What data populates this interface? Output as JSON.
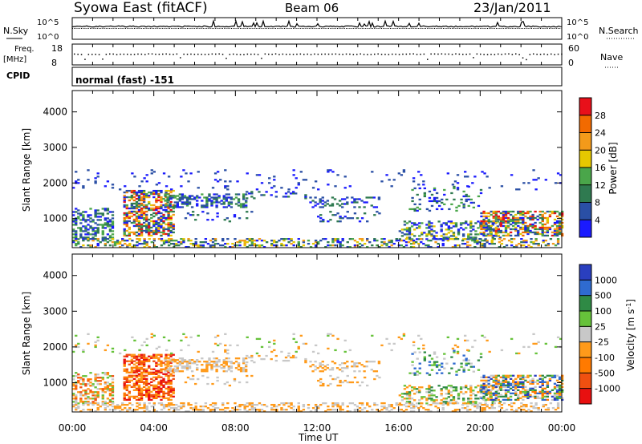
{
  "header": {
    "station": "Syowa East (fitACF)",
    "beam": "Beam 06",
    "date": "23/Jan/2011"
  },
  "strip": {
    "nsky_label": "N.Sky",
    "nsearch_label": "N.Search",
    "nsky_ticks": [
      "10^5",
      "10^0"
    ],
    "nsearch_ticks": [
      "10^5",
      "10^0"
    ],
    "freq_label_1": "Freq.",
    "freq_label_2": "[MHz]",
    "freq_ticks": [
      "18",
      "8"
    ],
    "nave_label": "Nave",
    "nave_ticks": [
      "60",
      "0"
    ],
    "cpid_label": "CPID",
    "cpid_value": "normal (fast) -151"
  },
  "chart_data": [
    {
      "type": "heatmap",
      "name": "power",
      "ylabel": "Slant Range [km]",
      "yticks": [
        "1000",
        "2000",
        "3000",
        "4000"
      ],
      "ylim": [
        180,
        4600
      ],
      "xlim": [
        0,
        24
      ],
      "colorbar": {
        "label": "Power [dB]",
        "ticks": [
          "4",
          "8",
          "12",
          "16",
          "20",
          "24",
          "28"
        ],
        "colors": [
          "#1a1aff",
          "#2a4fa5",
          "#2f7a50",
          "#4aa64a",
          "#e6c800",
          "#f39a1a",
          "#f26a00",
          "#e8101a"
        ]
      }
    },
    {
      "type": "heatmap",
      "name": "velocity",
      "ylabel": "Slant Range [km]",
      "yticks": [
        "1000",
        "2000",
        "3000",
        "4000"
      ],
      "ylim": [
        180,
        4600
      ],
      "xlim": [
        0,
        24
      ],
      "xlabel": "Time UT",
      "xticks": [
        "00:00",
        "04:00",
        "08:00",
        "12:00",
        "16:00",
        "20:00",
        "00:00"
      ],
      "colorbar": {
        "label": "Velocity [m s^-1]",
        "ticks": [
          "1000",
          "500",
          "100",
          "25",
          "-25",
          "-100",
          "-500",
          "-1000"
        ],
        "colors": [
          "#2a3fbf",
          "#2f6bd0",
          "#2f8a45",
          "#66c23a",
          "#c8c8c8",
          "#ff9a1a",
          "#ff7a00",
          "#f05010",
          "#e81010"
        ]
      }
    }
  ]
}
